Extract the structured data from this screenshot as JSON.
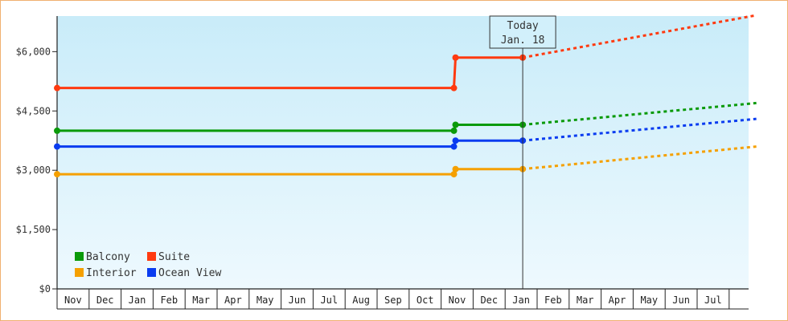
{
  "chart_data": {
    "type": "line",
    "title": "",
    "xlabel": "",
    "ylabel": "",
    "ylim": [
      0,
      6900
    ],
    "y_ticks": [
      {
        "value": 0,
        "label": "$0"
      },
      {
        "value": 1500,
        "label": "$1,500"
      },
      {
        "value": 3000,
        "label": "$3,000"
      },
      {
        "value": 4500,
        "label": "$4,500"
      },
      {
        "value": 6000,
        "label": "$6,000"
      }
    ],
    "x_months": [
      "Nov",
      "Dec",
      "Jan",
      "Feb",
      "Mar",
      "Apr",
      "May",
      "Jun",
      "Jul",
      "Aug",
      "Sep",
      "Oct",
      "Nov",
      "Dec",
      "Jan",
      "Feb",
      "Mar",
      "Apr",
      "May",
      "Jun",
      "Jul"
    ],
    "today": {
      "line1": "Today",
      "line2": "Jan. 18",
      "x_month_index": 14.55
    },
    "grid": false,
    "legend_position": "bottom-left",
    "series": [
      {
        "name": "Balcony",
        "color": "#0a9a0a",
        "history": [
          [
            0,
            4000
          ],
          [
            12.4,
            4000
          ],
          [
            12.45,
            4150
          ],
          [
            14.55,
            4150
          ]
        ],
        "forecast": [
          [
            14.55,
            4150
          ],
          [
            21.85,
            4700
          ]
        ]
      },
      {
        "name": "Suite",
        "color": "#ff3a10",
        "history": [
          [
            0,
            5080
          ],
          [
            12.4,
            5080
          ],
          [
            12.45,
            5850
          ],
          [
            14.55,
            5850
          ]
        ],
        "forecast": [
          [
            14.55,
            5850
          ],
          [
            21.85,
            6920
          ]
        ]
      },
      {
        "name": "Interior",
        "color": "#f5a000",
        "history": [
          [
            0,
            2900
          ],
          [
            12.4,
            2900
          ],
          [
            12.45,
            3030
          ],
          [
            14.55,
            3030
          ]
        ],
        "forecast": [
          [
            14.55,
            3030
          ],
          [
            21.85,
            3600
          ]
        ]
      },
      {
        "name": "Ocean View",
        "color": "#0a3cf0",
        "history": [
          [
            0,
            3600
          ],
          [
            12.4,
            3600
          ],
          [
            12.45,
            3750
          ],
          [
            14.55,
            3750
          ]
        ],
        "forecast": [
          [
            14.55,
            3750
          ],
          [
            21.85,
            4300
          ]
        ]
      }
    ]
  }
}
